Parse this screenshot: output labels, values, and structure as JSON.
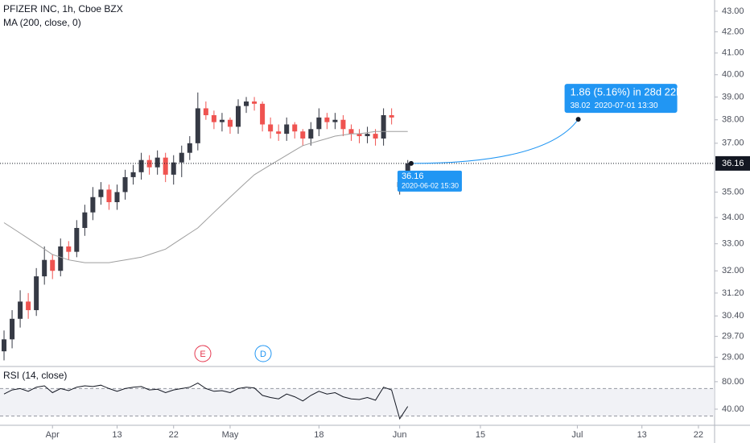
{
  "chart_data": {
    "type": "candlestick",
    "title": "PFIZER INC, 1h, Cboe BZX",
    "log_scale": true,
    "x": [
      "2020-03-24",
      "2020-03-25",
      "2020-03-26",
      "2020-03-27",
      "2020-03-30",
      "2020-03-31",
      "2020-04-01",
      "2020-04-02",
      "2020-04-03",
      "2020-04-06",
      "2020-04-07",
      "2020-04-08",
      "2020-04-09",
      "2020-04-10",
      "2020-04-13",
      "2020-04-14",
      "2020-04-15",
      "2020-04-16",
      "2020-04-17",
      "2020-04-20",
      "2020-04-21",
      "2020-04-22",
      "2020-04-23",
      "2020-04-24",
      "2020-04-27",
      "2020-04-28",
      "2020-04-29",
      "2020-04-30",
      "2020-05-01",
      "2020-05-04",
      "2020-05-05",
      "2020-05-06",
      "2020-05-07",
      "2020-05-08",
      "2020-05-11",
      "2020-05-12",
      "2020-05-13",
      "2020-05-14",
      "2020-05-15",
      "2020-05-18",
      "2020-05-19",
      "2020-05-20",
      "2020-05-21",
      "2020-05-22",
      "2020-05-25",
      "2020-05-26",
      "2020-05-27",
      "2020-05-28",
      "2020-05-29",
      "2020-06-01",
      "2020-06-02"
    ],
    "open": [
      29.2,
      29.6,
      30.3,
      30.9,
      30.6,
      31.8,
      32.4,
      32.0,
      32.9,
      32.7,
      33.6,
      34.2,
      34.8,
      35.1,
      34.6,
      35.0,
      35.6,
      35.8,
      36.3,
      36.0,
      36.4,
      35.7,
      36.2,
      36.6,
      37.0,
      38.5,
      38.2,
      37.9,
      38.0,
      37.7,
      38.6,
      38.8,
      38.7,
      37.8,
      37.5,
      37.4,
      37.8,
      37.5,
      37.2,
      37.6,
      38.1,
      37.9,
      38.0,
      37.6,
      37.4,
      37.3,
      37.4,
      37.2,
      38.2,
      35.2,
      35.4
    ],
    "high": [
      29.9,
      30.6,
      31.3,
      31.2,
      32.1,
      32.9,
      32.6,
      33.2,
      33.1,
      33.9,
      34.5,
      35.2,
      35.4,
      35.3,
      35.3,
      35.9,
      36.1,
      36.6,
      36.5,
      36.7,
      36.6,
      36.5,
      36.9,
      37.3,
      39.2,
      38.8,
      38.4,
      38.3,
      38.1,
      38.9,
      39.0,
      39.0,
      38.8,
      38.1,
      37.8,
      38.1,
      37.9,
      37.6,
      37.9,
      38.5,
      38.3,
      38.3,
      38.2,
      37.8,
      37.6,
      37.7,
      37.6,
      38.5,
      38.5,
      35.7,
      36.3
    ],
    "low": [
      28.9,
      29.3,
      30.0,
      30.3,
      30.4,
      31.5,
      31.7,
      31.8,
      32.4,
      32.5,
      33.3,
      33.9,
      34.5,
      34.3,
      34.3,
      34.7,
      35.3,
      35.5,
      35.7,
      35.7,
      35.4,
      35.3,
      35.6,
      36.3,
      36.7,
      38.0,
      37.6,
      37.5,
      37.4,
      37.4,
      38.3,
      38.4,
      37.5,
      37.2,
      37.1,
      37.1,
      37.2,
      36.9,
      36.9,
      37.3,
      37.6,
      37.6,
      37.3,
      37.1,
      37.0,
      37.0,
      36.9,
      36.9,
      37.8,
      34.9,
      35.1
    ],
    "close": [
      29.6,
      30.3,
      30.9,
      30.6,
      31.8,
      32.4,
      32.0,
      32.9,
      32.7,
      33.6,
      34.2,
      34.8,
      35.1,
      34.6,
      35.0,
      35.6,
      35.8,
      36.3,
      36.0,
      36.4,
      35.7,
      36.2,
      36.6,
      37.0,
      38.5,
      38.2,
      37.9,
      38.0,
      37.7,
      38.6,
      38.8,
      38.7,
      37.8,
      37.5,
      37.4,
      37.8,
      37.5,
      37.2,
      37.6,
      38.1,
      37.9,
      38.0,
      37.6,
      37.4,
      37.3,
      37.4,
      37.2,
      38.2,
      38.1,
      35.4,
      36.16
    ],
    "up_color": "#363a45",
    "down_color": "#ef5350",
    "ma": {
      "name": "MA (200, close, 0)",
      "color": "#9e9e9e",
      "values": [
        33.8,
        33.6,
        33.4,
        33.2,
        33.0,
        32.8,
        32.6,
        32.5,
        32.4,
        32.35,
        32.3,
        32.3,
        32.3,
        32.3,
        32.35,
        32.4,
        32.45,
        32.5,
        32.6,
        32.7,
        32.8,
        33.0,
        33.2,
        33.4,
        33.6,
        33.9,
        34.2,
        34.5,
        34.8,
        35.1,
        35.4,
        35.7,
        35.9,
        36.1,
        36.3,
        36.5,
        36.7,
        36.9,
        37.0,
        37.1,
        37.2,
        37.3,
        37.35,
        37.4,
        37.4,
        37.45,
        37.5,
        37.5,
        37.5,
        37.5,
        37.5
      ]
    },
    "xlim": [
      "2020-03-24",
      "2020-07-24"
    ],
    "xticks": [
      {
        "value": "2020-04-01",
        "label": "Apr"
      },
      {
        "value": "2020-04-13",
        "label": "13"
      },
      {
        "value": "2020-04-22",
        "label": "22"
      },
      {
        "value": "2020-05-01",
        "label": "May"
      },
      {
        "value": "2020-05-18",
        "label": "18"
      },
      {
        "value": "2020-06-01",
        "label": "Jun"
      },
      {
        "value": "2020-06-15",
        "label": "15"
      },
      {
        "value": "2020-07-01",
        "label": "Jul"
      },
      {
        "value": "2020-07-13",
        "label": "13"
      },
      {
        "value": "2020-07-22",
        "label": "22"
      }
    ],
    "ylim": [
      28.7,
      43.55
    ],
    "yticks": [
      {
        "value": 43,
        "label": "43.00"
      },
      {
        "value": 42,
        "label": "42.00"
      },
      {
        "value": 41,
        "label": "41.00"
      },
      {
        "value": 40,
        "label": "40.00"
      },
      {
        "value": 39,
        "label": "39.00"
      },
      {
        "value": 38,
        "label": "38.00"
      },
      {
        "value": 37,
        "label": "37.00"
      },
      {
        "value": 35,
        "label": "35.00"
      },
      {
        "value": 34,
        "label": "34.00"
      },
      {
        "value": 33,
        "label": "33.00"
      },
      {
        "value": 32,
        "label": "32.00"
      },
      {
        "value": 31.2,
        "label": "31.20"
      },
      {
        "value": 30.4,
        "label": "30.40"
      },
      {
        "value": 29.7,
        "label": "29.70"
      },
      {
        "value": 29,
        "label": "29.00"
      }
    ],
    "events": [
      {
        "label": "E",
        "color": "#e53950"
      },
      {
        "label": "D",
        "color": "#2196f3"
      }
    ],
    "measure": {
      "label": "1.86 (5.16%) in 28d 22h",
      "color": "#2196f3",
      "start": {
        "x": "2020-06-02 15:30",
        "y": 36.16
      },
      "end": {
        "x": "2020-07-01 13:30",
        "y": 38.02
      }
    },
    "rsi": {
      "name": "RSI (14, close)",
      "color": "#131722",
      "band": [
        30,
        70
      ],
      "ylim": [
        16.5,
        101
      ],
      "yticks": [
        {
          "value": 80,
          "label": "80.00"
        },
        {
          "value": 40,
          "label": "40.00"
        }
      ],
      "values": [
        62,
        68,
        70,
        66,
        72,
        74,
        64,
        70,
        67,
        72,
        74,
        73,
        75,
        70,
        66,
        70,
        72,
        73,
        68,
        69,
        64,
        68,
        70,
        72,
        78,
        70,
        66,
        67,
        64,
        70,
        72,
        71,
        60,
        57,
        55,
        62,
        58,
        52,
        60,
        66,
        62,
        64,
        58,
        55,
        54,
        57,
        53,
        72,
        68,
        26,
        44
      ]
    }
  }
}
